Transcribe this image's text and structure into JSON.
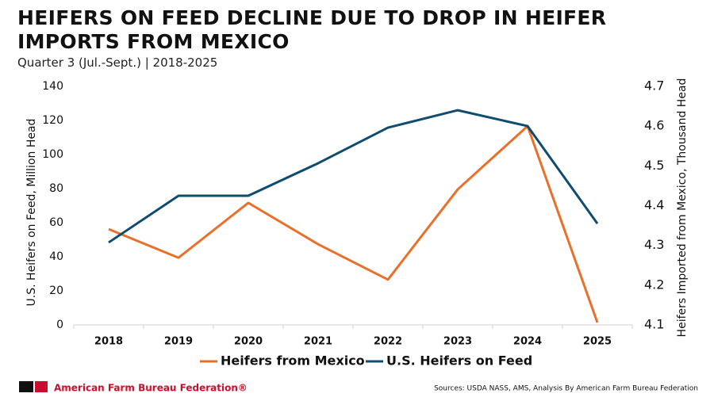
{
  "chart_data": {
    "type": "line",
    "title": "HEIFERS ON FEED DECLINE DUE TO DROP IN HEIFER IMPORTS FROM MEXICO",
    "subtitle": "Quarter 3 (Jul.-Sept.) | 2018-2025",
    "y_label": "U.S. Heifers on Feed, Million Head",
    "y2_label": "Heifers Imported from Mexico, Thousand Head",
    "categories": [
      "2018",
      "2019",
      "2020",
      "2021",
      "2022",
      "2023",
      "2024",
      "2025"
    ],
    "series": [
      {
        "name": "Heifers from Mexico",
        "color": "#e8702a",
        "axis": "y2",
        "values": [
          4.341,
          4.269,
          4.407,
          4.303,
          4.214,
          4.441,
          4.6,
          4.106
        ]
      },
      {
        "name": "U.S. Heifers on Feed",
        "color": "#0f4c6e",
        "values": [
          48.4,
          75.8,
          75.8,
          94.9,
          115.8,
          126,
          116.7,
          59.5
        ]
      }
    ],
    "ylim": [
      0,
      140
    ],
    "yticks": [
      0,
      20,
      40,
      60,
      80,
      100,
      120,
      140
    ],
    "y2lim": [
      4.1,
      4.7
    ],
    "y2ticks": [
      4.1,
      4.2,
      4.3,
      4.4,
      4.5,
      4.6,
      4.7
    ],
    "grid": false,
    "organization": "American Farm Bureau Federation®",
    "source": "Sources: USDA NASS, AMS, Analysis By American Farm Bureau Federation"
  }
}
